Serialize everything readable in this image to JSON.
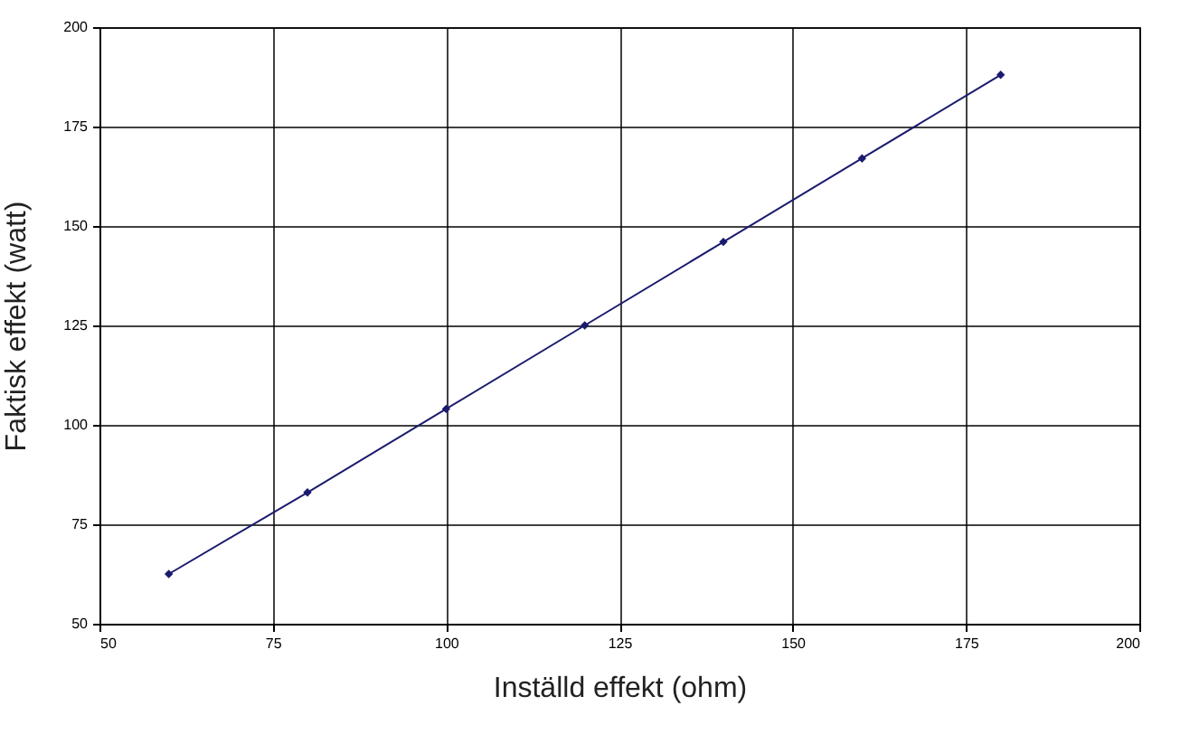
{
  "chart_data": {
    "type": "line",
    "xlabel": "Inställd effekt (ohm)",
    "ylabel": "Faktisk effekt (watt)",
    "x": [
      60,
      80,
      100,
      120,
      140,
      160,
      180
    ],
    "series": [
      {
        "color": "#1a1a6e",
        "values": [
          62.5,
          83,
          104,
          125,
          146,
          167,
          188
        ]
      }
    ],
    "xlim": [
      50,
      200
    ],
    "xticks": [
      50,
      75,
      100,
      125,
      150,
      175,
      200
    ],
    "ylim": [
      50,
      200
    ],
    "yticks": [
      50,
      75,
      100,
      125,
      150,
      175,
      200
    ],
    "grid": true,
    "marker": "diamond",
    "line_style": "solid",
    "legend": false
  }
}
